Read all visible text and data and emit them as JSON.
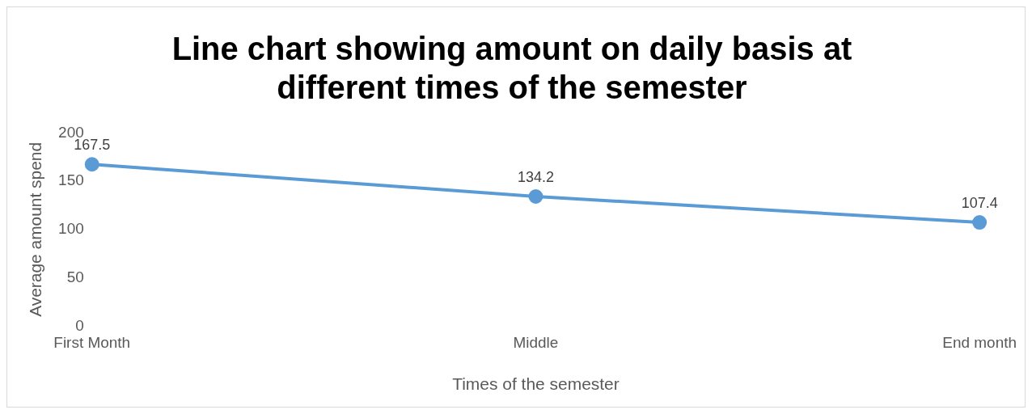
{
  "chart_data": {
    "type": "line",
    "title": "Line chart showing amount on daily basis at different times of the semester",
    "xlabel": "Times of the semester",
    "ylabel": "Average amount spend",
    "categories": [
      "First Month",
      "Middle",
      "End month"
    ],
    "series": [
      {
        "color": "#5b9bd5",
        "values": [
          167.5,
          134.2,
          107.4
        ]
      }
    ],
    "ylim": [
      0,
      200
    ],
    "yticks": [
      0,
      50,
      100,
      150,
      200
    ],
    "grid": false,
    "legend": false,
    "marker": "circle",
    "line_style": "solid",
    "data_labels": true
  }
}
